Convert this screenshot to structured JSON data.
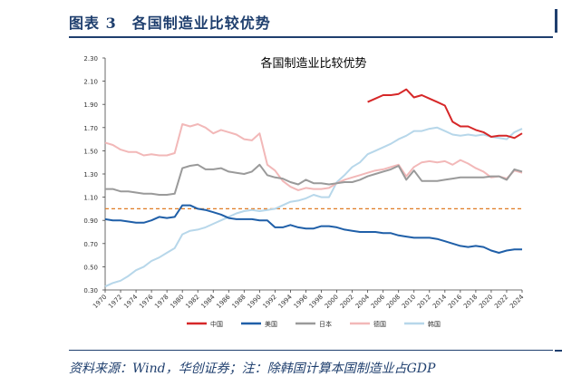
{
  "figure": {
    "title": "图表 3　各国制造业比较优势",
    "source": "资料来源：Wind，华创证券；注：除韩国计算本国制造业占GDP"
  },
  "chart_data": {
    "type": "line",
    "title": "各国制造业比较优势",
    "xlabel": "",
    "ylabel": "",
    "ylim": [
      0.3,
      2.3
    ],
    "yticks": [
      "2.30",
      "2.10",
      "1.90",
      "1.70",
      "1.50",
      "1.30",
      "1.10",
      "0.90",
      "0.70",
      "0.50",
      "0.30"
    ],
    "xticks": [
      "1970",
      "1972",
      "1974",
      "1976",
      "1978",
      "1980",
      "1982",
      "1984",
      "1986",
      "1988",
      "1990",
      "1992",
      "1994",
      "1996",
      "1998",
      "2000",
      "2002",
      "2004",
      "2006",
      "2008",
      "2010",
      "2012",
      "2014",
      "2016",
      "2018",
      "2020",
      "2022",
      "2024"
    ],
    "grid": false,
    "legend_position": "bottom",
    "reference_line": {
      "y": 1.0,
      "style": "dashed",
      "color": "#e07b24"
    },
    "series": [
      {
        "name": "中国",
        "color": "#d62728",
        "x": [
          2004,
          2005,
          2006,
          2007,
          2008,
          2009,
          2010,
          2011,
          2012,
          2013,
          2014,
          2015,
          2016,
          2017,
          2018,
          2019,
          2020,
          2021,
          2022,
          2023,
          2024
        ],
        "values": [
          1.92,
          1.95,
          1.98,
          1.98,
          1.99,
          2.03,
          1.96,
          1.98,
          1.95,
          1.92,
          1.89,
          1.75,
          1.71,
          1.71,
          1.68,
          1.66,
          1.62,
          1.63,
          1.63,
          1.61,
          1.65
        ]
      },
      {
        "name": "美国",
        "color": "#1f5fa8",
        "x": [
          1970,
          1971,
          1972,
          1973,
          1974,
          1975,
          1976,
          1977,
          1978,
          1979,
          1980,
          1981,
          1982,
          1983,
          1984,
          1985,
          1986,
          1987,
          1988,
          1989,
          1990,
          1991,
          1992,
          1993,
          1994,
          1995,
          1996,
          1997,
          1998,
          1999,
          2000,
          2001,
          2002,
          2003,
          2004,
          2005,
          2006,
          2007,
          2008,
          2009,
          2010,
          2011,
          2012,
          2013,
          2014,
          2015,
          2016,
          2017,
          2018,
          2019,
          2020,
          2021,
          2022,
          2023,
          2024
        ],
        "values": [
          0.91,
          0.9,
          0.9,
          0.89,
          0.88,
          0.88,
          0.9,
          0.93,
          0.92,
          0.93,
          1.03,
          1.03,
          1.0,
          0.99,
          0.97,
          0.95,
          0.92,
          0.91,
          0.91,
          0.91,
          0.9,
          0.9,
          0.84,
          0.84,
          0.86,
          0.84,
          0.83,
          0.83,
          0.85,
          0.85,
          0.84,
          0.82,
          0.81,
          0.8,
          0.8,
          0.8,
          0.79,
          0.79,
          0.77,
          0.76,
          0.75,
          0.75,
          0.75,
          0.74,
          0.72,
          0.7,
          0.68,
          0.67,
          0.68,
          0.67,
          0.64,
          0.62,
          0.64,
          0.65,
          0.65
        ]
      },
      {
        "name": "日本",
        "color": "#9a9a9a",
        "x": [
          1970,
          1971,
          1972,
          1973,
          1974,
          1975,
          1976,
          1977,
          1978,
          1979,
          1980,
          1981,
          1982,
          1983,
          1984,
          1985,
          1986,
          1987,
          1988,
          1989,
          1990,
          1991,
          1992,
          1993,
          1994,
          1995,
          1996,
          1997,
          1998,
          1999,
          2000,
          2001,
          2002,
          2003,
          2004,
          2005,
          2006,
          2007,
          2008,
          2009,
          2010,
          2011,
          2012,
          2013,
          2014,
          2015,
          2016,
          2017,
          2018,
          2019,
          2020,
          2021,
          2022,
          2023,
          2024
        ],
        "values": [
          1.17,
          1.17,
          1.15,
          1.15,
          1.14,
          1.13,
          1.13,
          1.12,
          1.12,
          1.13,
          1.35,
          1.37,
          1.38,
          1.34,
          1.34,
          1.35,
          1.32,
          1.31,
          1.3,
          1.32,
          1.38,
          1.29,
          1.27,
          1.26,
          1.23,
          1.21,
          1.25,
          1.22,
          1.22,
          1.21,
          1.22,
          1.23,
          1.23,
          1.25,
          1.28,
          1.3,
          1.32,
          1.34,
          1.37,
          1.25,
          1.33,
          1.24,
          1.24,
          1.24,
          1.25,
          1.26,
          1.27,
          1.27,
          1.27,
          1.27,
          1.28,
          1.28,
          1.25,
          1.34,
          1.32
        ]
      },
      {
        "name": "德国",
        "color": "#f2b8b8",
        "x": [
          1970,
          1971,
          1972,
          1973,
          1974,
          1975,
          1976,
          1977,
          1978,
          1979,
          1980,
          1981,
          1982,
          1983,
          1984,
          1985,
          1986,
          1987,
          1988,
          1989,
          1990,
          1991,
          1992,
          1993,
          1994,
          1995,
          1996,
          1997,
          1998,
          1999,
          2000,
          2001,
          2002,
          2003,
          2004,
          2005,
          2006,
          2007,
          2008,
          2009,
          2010,
          2011,
          2012,
          2013,
          2014,
          2015,
          2016,
          2017,
          2018,
          2019,
          2020,
          2021,
          2022,
          2023,
          2024
        ],
        "values": [
          1.57,
          1.55,
          1.51,
          1.49,
          1.49,
          1.46,
          1.47,
          1.46,
          1.46,
          1.48,
          1.73,
          1.71,
          1.73,
          1.7,
          1.65,
          1.68,
          1.66,
          1.64,
          1.6,
          1.59,
          1.65,
          1.38,
          1.33,
          1.24,
          1.19,
          1.16,
          1.18,
          1.17,
          1.17,
          1.18,
          1.22,
          1.25,
          1.27,
          1.29,
          1.31,
          1.33,
          1.34,
          1.36,
          1.38,
          1.28,
          1.36,
          1.4,
          1.41,
          1.4,
          1.41,
          1.38,
          1.42,
          1.39,
          1.35,
          1.32,
          1.27,
          1.28,
          1.26,
          1.33,
          1.31
        ]
      },
      {
        "name": "韩国",
        "color": "#b7d7ea",
        "x": [
          1970,
          1971,
          1972,
          1973,
          1974,
          1975,
          1976,
          1977,
          1978,
          1979,
          1980,
          1981,
          1982,
          1983,
          1984,
          1985,
          1986,
          1987,
          1988,
          1989,
          1990,
          1991,
          1992,
          1993,
          1994,
          1995,
          1996,
          1997,
          1998,
          1999,
          2000,
          2001,
          2002,
          2003,
          2004,
          2005,
          2006,
          2007,
          2008,
          2009,
          2010,
          2011,
          2012,
          2013,
          2014,
          2015,
          2016,
          2017,
          2018,
          2019,
          2020,
          2021,
          2022,
          2023,
          2024
        ],
        "values": [
          0.33,
          0.36,
          0.38,
          0.42,
          0.47,
          0.5,
          0.55,
          0.58,
          0.62,
          0.66,
          0.78,
          0.81,
          0.82,
          0.84,
          0.87,
          0.9,
          0.93,
          0.96,
          0.98,
          0.99,
          0.98,
          0.99,
          1.0,
          1.03,
          1.06,
          1.07,
          1.09,
          1.12,
          1.1,
          1.1,
          1.23,
          1.29,
          1.36,
          1.4,
          1.47,
          1.5,
          1.53,
          1.56,
          1.6,
          1.63,
          1.67,
          1.67,
          1.69,
          1.7,
          1.67,
          1.64,
          1.63,
          1.64,
          1.63,
          1.64,
          1.62,
          1.61,
          1.6,
          1.66,
          1.69
        ]
      }
    ]
  }
}
